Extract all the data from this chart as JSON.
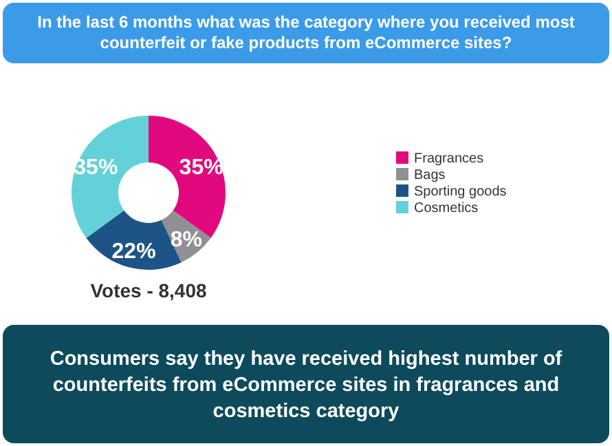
{
  "chart_data": {
    "type": "donut",
    "title": "In the last 6 months what was the category where you received most counterfeit or fake products from eCommerce sites?",
    "categories": [
      "Fragrances",
      "Bags",
      "Sporting goods",
      "Cosmetics"
    ],
    "values": [
      35,
      8,
      22,
      35
    ],
    "value_labels": [
      "35%",
      "8%",
      "22%",
      "35%"
    ],
    "colors": [
      "#e2097f",
      "#8f8f94",
      "#1d5488",
      "#63d1d9"
    ],
    "legend": "right",
    "annotations": [
      "Votes - 8,408",
      "Consumers say they have received highest number of counterfeits from eCommerce sites in fragrances and cosmetics category"
    ]
  }
}
